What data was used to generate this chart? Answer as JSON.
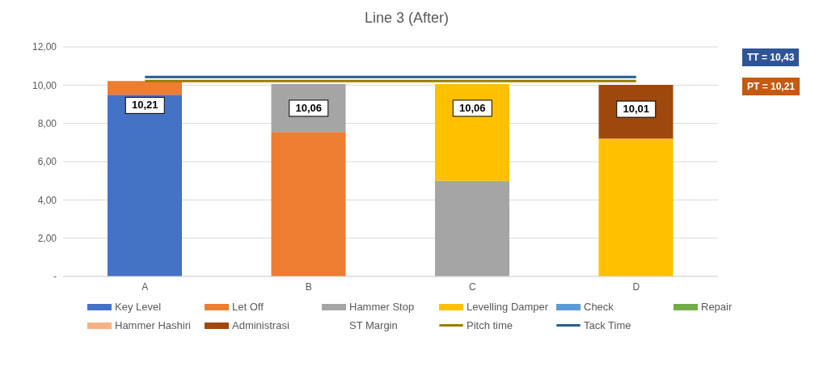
{
  "chart_data": {
    "type": "bar",
    "title": "Line 3 (After)",
    "stacked": true,
    "categories": [
      "A",
      "B",
      "C",
      "D"
    ],
    "series": [
      {
        "name": "Key Level",
        "color": "#4472c4",
        "values": [
          9.5,
          null,
          null,
          null
        ]
      },
      {
        "name": "Let Off",
        "color": "#ed7d31",
        "values": [
          0.71,
          7.55,
          null,
          null
        ]
      },
      {
        "name": "Hammer Stop",
        "color": "#a5a5a5",
        "values": [
          null,
          2.51,
          5.0,
          null
        ]
      },
      {
        "name": "Levelling Damper",
        "color": "#ffc000",
        "values": [
          null,
          null,
          5.06,
          7.2
        ]
      },
      {
        "name": "Check",
        "color": "#5b9bd5",
        "values": [
          null,
          null,
          null,
          null
        ]
      },
      {
        "name": "Repair",
        "color": "#70ad47",
        "values": [
          null,
          null,
          null,
          null
        ]
      },
      {
        "name": "Hammer Hashiri",
        "color": "#f4b183",
        "values": [
          null,
          null,
          null,
          null
        ]
      },
      {
        "name": "Administrasi",
        "color": "#9e480e",
        "values": [
          null,
          null,
          null,
          2.81
        ]
      },
      {
        "name": "ST Margin",
        "values": [
          null,
          null,
          null,
          null
        ]
      },
      {
        "name": "Pitch time",
        "type": "line",
        "color": "#9c7a00",
        "values": [
          10.21,
          10.21,
          10.21,
          10.21
        ]
      },
      {
        "name": "Tack Time",
        "type": "line",
        "color": "#255e91",
        "values": [
          10.43,
          10.43,
          10.43,
          10.43
        ]
      }
    ],
    "totals": [
      "10,21",
      "10,06",
      "10,06",
      "10,01"
    ],
    "annotations": [
      "TT = 10,43",
      "PT = 10,21"
    ],
    "ylim": [
      0,
      12
    ],
    "yticks": [
      {
        "value": 0,
        "label": "-"
      },
      {
        "value": 2,
        "label": "2,00"
      },
      {
        "value": 4,
        "label": "4,00"
      },
      {
        "value": 6,
        "label": "6,00"
      },
      {
        "value": 8,
        "label": "8,00"
      },
      {
        "value": 10,
        "label": "10,00"
      },
      {
        "value": 12,
        "label": "12,00"
      }
    ],
    "grid": "y",
    "legend": "bottom"
  }
}
